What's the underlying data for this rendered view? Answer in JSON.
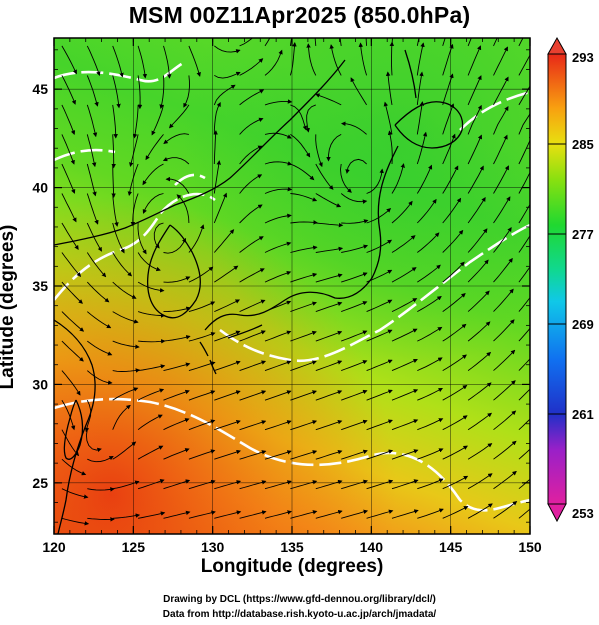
{
  "title": "MSM 00Z11Apr2025 (850.0hPa)",
  "axes": {
    "xlabel": "Longitude (degrees)",
    "ylabel": "Latitude  (degrees)",
    "x_ticks": [
      "120",
      "125",
      "130",
      "135",
      "140",
      "145",
      "150"
    ],
    "y_ticks": [
      "25",
      "30",
      "35",
      "40",
      "45"
    ],
    "xlim": [
      120,
      150
    ],
    "ylim": [
      22.4,
      47.6
    ]
  },
  "colorbar": {
    "labels": [
      "293",
      "285",
      "277",
      "269",
      "261",
      "253"
    ],
    "range": [
      253,
      293
    ],
    "palette": [
      "#ee1e8f",
      "#a21ec8",
      "#2233cc",
      "#1a8cf0",
      "#10d8d0",
      "#10d060",
      "#30e020",
      "#a8e010",
      "#f0d010",
      "#f8a010",
      "#f05010",
      "#e02020"
    ]
  },
  "credits": {
    "line1": "Drawing by DCL (https://www.gfd-dennou.org/library/dcl/)",
    "line2": "Data from http://database.rish.kyoto-u.ac.jp/arch/jmadata/"
  },
  "map": {
    "field": "temperature (K) with wind streamlines",
    "colors": {
      "warm": "#f06010",
      "mid": "#d8e010",
      "cool": "#40d020",
      "contour": "#ffffff",
      "coast": "#000000"
    }
  }
}
